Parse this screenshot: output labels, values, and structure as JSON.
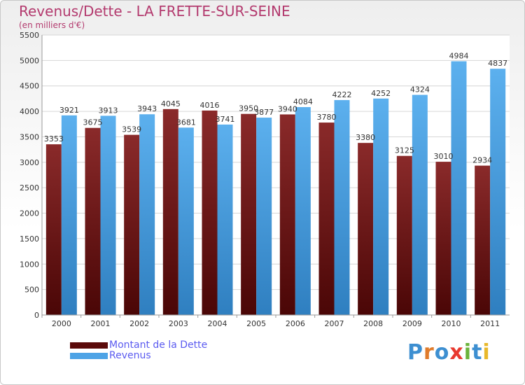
{
  "header": {
    "title": "Revenus/Dette - LA FRETTE-SUR-SEINE",
    "subtitle": "(en milliers d'€)"
  },
  "colors": {
    "title": "#b33a6e",
    "dette": "#7a1e1e",
    "revenus": "#4da3e6",
    "legend_text": "#5b5bf0"
  },
  "legend": [
    {
      "label": "Montant de la Dette",
      "color": "#6b1414"
    },
    {
      "label": "Revenus",
      "color": "#4da3e6"
    }
  ],
  "logo": {
    "text": "Proxiti"
  },
  "chart_data": {
    "type": "bar",
    "title": "Revenus/Dette - LA FRETTE-SUR-SEINE",
    "subtitle": "(en milliers d'€)",
    "categories": [
      "2000",
      "2001",
      "2002",
      "2003",
      "2004",
      "2005",
      "2006",
      "2007",
      "2008",
      "2009",
      "2010",
      "2011"
    ],
    "series": [
      {
        "name": "Montant de la Dette",
        "color": "#7a1e1e",
        "values": [
          3353,
          3675,
          3539,
          4045,
          4016,
          3950,
          3940,
          3780,
          3380,
          3125,
          3010,
          2934
        ]
      },
      {
        "name": "Revenus",
        "color": "#4da3e6",
        "values": [
          3921,
          3913,
          3943,
          3681,
          3741,
          3877,
          4084,
          4222,
          4252,
          4324,
          4984,
          4837
        ]
      }
    ],
    "ylim": [
      0,
      5500
    ],
    "yticks": [
      0,
      500,
      1000,
      1500,
      2000,
      2500,
      3000,
      3500,
      4000,
      4500,
      5000,
      5500
    ],
    "grid": true,
    "legend_position": "bottom-left"
  }
}
